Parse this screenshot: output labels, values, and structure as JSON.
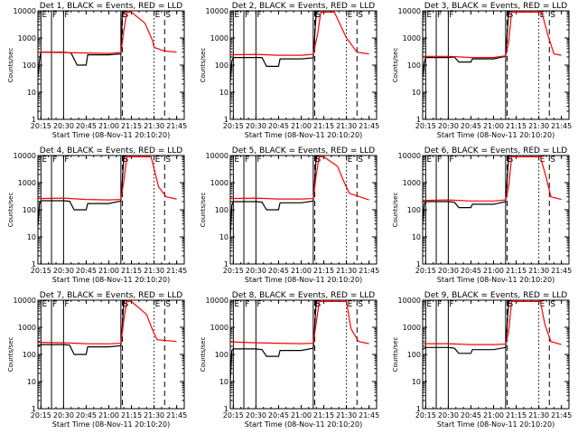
{
  "chart_data": {
    "type": "line",
    "yscale": "log",
    "ylim": [
      1,
      10000
    ],
    "y_tick_labels": [
      "1",
      "10",
      "100",
      "1000",
      "10000"
    ],
    "xlim": [
      "20:13",
      "21:50"
    ],
    "x_tick_labels": [
      "20:15",
      "20:30",
      "20:45",
      "21:00",
      "21:15",
      "21:30",
      "21:45"
    ],
    "ylabel": "Counts/sec",
    "xlabel": "Start Time (08-Nov-11 20:10:20)",
    "colors": {
      "events": "#000000",
      "lld": "#ff0000"
    },
    "panels": [
      {
        "title": "Det 1, BLACK = Events, RED = LLD",
        "events": [
          [
            "20:13",
            40
          ],
          [
            "20:14",
            150
          ],
          [
            "20:15",
            300
          ],
          [
            "20:30",
            300
          ],
          [
            "20:35",
            280
          ],
          [
            "20:39",
            100
          ],
          [
            "20:45",
            100
          ],
          [
            "20:46",
            240
          ],
          [
            "21:00",
            240
          ],
          [
            "21:08",
            260
          ],
          [
            "21:09",
            9000
          ]
        ],
        "lld": [
          [
            "20:13",
            300
          ],
          [
            "20:30",
            290
          ],
          [
            "20:46",
            280
          ],
          [
            "21:00",
            270
          ],
          [
            "21:08",
            290
          ],
          [
            "21:10",
            2000
          ],
          [
            "21:12",
            9000
          ],
          [
            "21:15",
            9000
          ],
          [
            "21:24",
            3500
          ],
          [
            "21:29",
            800
          ],
          [
            "21:30",
            450
          ],
          [
            "21:37",
            330
          ],
          [
            "21:45",
            300
          ]
        ]
      },
      {
        "title": "Det 2, BLACK = Events, RED = LLD",
        "events": [
          [
            "20:13",
            25
          ],
          [
            "20:14",
            140
          ],
          [
            "20:15",
            190
          ],
          [
            "20:30",
            190
          ],
          [
            "20:34",
            190
          ],
          [
            "20:37",
            90
          ],
          [
            "20:45",
            90
          ],
          [
            "20:46",
            170
          ],
          [
            "21:00",
            170
          ],
          [
            "21:08",
            185
          ],
          [
            "21:10",
            9000
          ]
        ],
        "lld": [
          [
            "20:13",
            240
          ],
          [
            "20:30",
            250
          ],
          [
            "20:45",
            230
          ],
          [
            "21:00",
            230
          ],
          [
            "21:08",
            250
          ],
          [
            "21:11",
            1500
          ],
          [
            "21:13",
            9000
          ],
          [
            "21:22",
            9000
          ],
          [
            "21:30",
            1000
          ],
          [
            "21:37",
            300
          ],
          [
            "21:45",
            260
          ]
        ]
      },
      {
        "title": "Det 3, BLACK = Events, RED = LLD",
        "events": [
          [
            "20:13",
            35
          ],
          [
            "20:14",
            120
          ],
          [
            "20:15",
            190
          ],
          [
            "20:30",
            190
          ],
          [
            "20:34",
            200
          ],
          [
            "20:37",
            130
          ],
          [
            "20:45",
            130
          ],
          [
            "20:46",
            170
          ],
          [
            "21:00",
            170
          ],
          [
            "21:08",
            210
          ],
          [
            "21:10",
            9000
          ]
        ],
        "lld": [
          [
            "20:13",
            210
          ],
          [
            "20:30",
            210
          ],
          [
            "20:45",
            190
          ],
          [
            "21:00",
            190
          ],
          [
            "21:08",
            220
          ],
          [
            "21:10",
            700
          ],
          [
            "21:12",
            9000
          ],
          [
            "21:32",
            9000
          ],
          [
            "21:36",
            1300
          ],
          [
            "21:40",
            260
          ],
          [
            "21:45",
            230
          ]
        ]
      },
      {
        "title": "Det 4, BLACK = Events, RED = LLD",
        "events": [
          [
            "20:13",
            25
          ],
          [
            "20:14",
            170
          ],
          [
            "20:15",
            215
          ],
          [
            "20:30",
            215
          ],
          [
            "20:34",
            205
          ],
          [
            "20:37",
            100
          ],
          [
            "20:45",
            100
          ],
          [
            "20:46",
            170
          ],
          [
            "21:00",
            170
          ],
          [
            "21:08",
            210
          ],
          [
            "21:10",
            9000
          ]
        ],
        "lld": [
          [
            "20:13",
            260
          ],
          [
            "20:30",
            270
          ],
          [
            "20:45",
            240
          ],
          [
            "21:00",
            230
          ],
          [
            "21:08",
            240
          ],
          [
            "21:10",
            1200
          ],
          [
            "21:12",
            9000
          ],
          [
            "21:28",
            9000
          ],
          [
            "21:33",
            700
          ],
          [
            "21:38",
            300
          ],
          [
            "21:45",
            250
          ]
        ]
      },
      {
        "title": "Det 5, BLACK = Events, RED = LLD",
        "events": [
          [
            "20:13",
            10
          ],
          [
            "20:14",
            150
          ],
          [
            "20:15",
            200
          ],
          [
            "20:30",
            200
          ],
          [
            "20:34",
            190
          ],
          [
            "20:37",
            100
          ],
          [
            "20:45",
            100
          ],
          [
            "20:46",
            180
          ],
          [
            "21:00",
            180
          ],
          [
            "21:08",
            210
          ],
          [
            "21:10",
            9000
          ]
        ],
        "lld": [
          [
            "20:13",
            260
          ],
          [
            "20:30",
            270
          ],
          [
            "20:45",
            250
          ],
          [
            "21:00",
            250
          ],
          [
            "21:08",
            260
          ],
          [
            "21:10",
            2000
          ],
          [
            "21:12",
            9000
          ],
          [
            "21:15",
            9000
          ],
          [
            "21:24",
            4000
          ],
          [
            "21:29",
            900
          ],
          [
            "21:32",
            400
          ],
          [
            "21:45",
            230
          ]
        ]
      },
      {
        "title": "Det 6, BLACK = Events, RED = LLD",
        "events": [
          [
            "20:13",
            30
          ],
          [
            "20:14",
            160
          ],
          [
            "20:15",
            200
          ],
          [
            "20:30",
            200
          ],
          [
            "20:34",
            190
          ],
          [
            "20:37",
            120
          ],
          [
            "20:45",
            120
          ],
          [
            "20:46",
            160
          ],
          [
            "21:00",
            160
          ],
          [
            "21:08",
            200
          ],
          [
            "21:10",
            9000
          ]
        ],
        "lld": [
          [
            "20:13",
            220
          ],
          [
            "20:30",
            230
          ],
          [
            "20:45",
            210
          ],
          [
            "21:00",
            210
          ],
          [
            "21:08",
            230
          ],
          [
            "21:10",
            700
          ],
          [
            "21:12",
            9000
          ],
          [
            "21:31",
            9000
          ],
          [
            "21:35",
            1500
          ],
          [
            "21:38",
            300
          ],
          [
            "21:45",
            240
          ]
        ]
      },
      {
        "title": "Det 7, BLACK = Events, RED = LLD",
        "events": [
          [
            "20:13",
            210
          ],
          [
            "20:15",
            230
          ],
          [
            "20:30",
            230
          ],
          [
            "20:34",
            220
          ],
          [
            "20:37",
            100
          ],
          [
            "20:45",
            100
          ],
          [
            "20:46",
            190
          ],
          [
            "21:00",
            190
          ],
          [
            "21:08",
            210
          ],
          [
            "21:10",
            9000
          ]
        ],
        "lld": [
          [
            "20:13",
            280
          ],
          [
            "20:30",
            270
          ],
          [
            "20:45",
            250
          ],
          [
            "21:00",
            245
          ],
          [
            "21:08",
            260
          ],
          [
            "21:10",
            2000
          ],
          [
            "21:12",
            9000
          ],
          [
            "21:15",
            9000
          ],
          [
            "21:25",
            3000
          ],
          [
            "21:29",
            800
          ],
          [
            "21:32",
            350
          ],
          [
            "21:45",
            300
          ]
        ]
      },
      {
        "title": "Det 8, BLACK = Events, RED = LLD",
        "events": [
          [
            "20:13",
            10
          ],
          [
            "20:14",
            140
          ],
          [
            "20:15",
            160
          ],
          [
            "20:30",
            160
          ],
          [
            "20:34",
            150
          ],
          [
            "20:37",
            85
          ],
          [
            "20:45",
            85
          ],
          [
            "20:46",
            140
          ],
          [
            "21:00",
            140
          ],
          [
            "21:08",
            170
          ],
          [
            "21:10",
            9000
          ]
        ],
        "lld": [
          [
            "20:13",
            290
          ],
          [
            "20:30",
            270
          ],
          [
            "20:45",
            260
          ],
          [
            "21:00",
            250
          ],
          [
            "21:08",
            260
          ],
          [
            "21:10",
            1500
          ],
          [
            "21:12",
            9000
          ],
          [
            "21:30",
            9000
          ],
          [
            "21:33",
            900
          ],
          [
            "21:38",
            300
          ],
          [
            "21:45",
            250
          ]
        ]
      },
      {
        "title": "Det 9, BLACK = Events, RED = LLD",
        "events": [
          [
            "20:13",
            150
          ],
          [
            "20:15",
            180
          ],
          [
            "20:30",
            180
          ],
          [
            "20:34",
            170
          ],
          [
            "20:37",
            110
          ],
          [
            "20:45",
            110
          ],
          [
            "20:46",
            150
          ],
          [
            "21:00",
            150
          ],
          [
            "21:08",
            180
          ],
          [
            "21:10",
            9000
          ]
        ],
        "lld": [
          [
            "20:13",
            250
          ],
          [
            "20:30",
            250
          ],
          [
            "20:45",
            230
          ],
          [
            "21:00",
            230
          ],
          [
            "21:08",
            240
          ],
          [
            "21:10",
            700
          ],
          [
            "21:12",
            9000
          ],
          [
            "21:31",
            9000
          ],
          [
            "21:34",
            1300
          ],
          [
            "21:38",
            300
          ],
          [
            "21:45",
            230
          ]
        ]
      }
    ],
    "vertical_lines": [
      {
        "label": "E",
        "style": "solid",
        "times": [
          "20:15",
          "21:08"
        ]
      },
      {
        "label": "F",
        "style": "solid",
        "times": [
          "20:22",
          "20:30"
        ]
      },
      {
        "label": "S",
        "style": "dashed",
        "times": [
          "21:09",
          "21:37"
        ]
      },
      {
        "label": "E",
        "style": "dotted",
        "times": [
          "21:30"
        ]
      }
    ]
  }
}
